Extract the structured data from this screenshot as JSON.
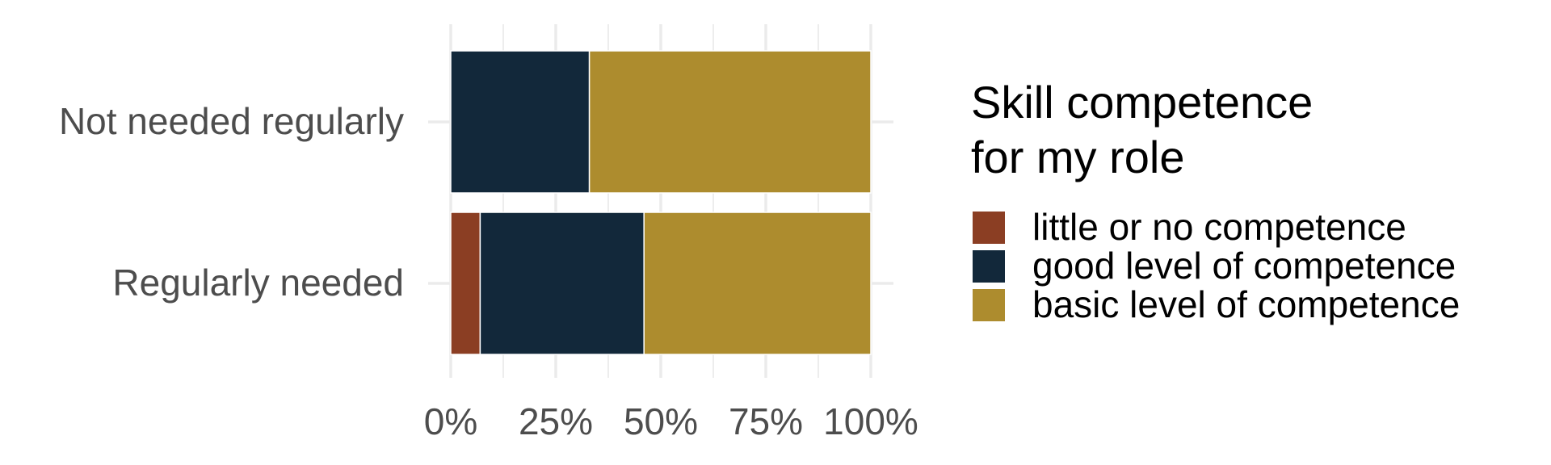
{
  "chart_data": {
    "type": "bar",
    "orientation": "horizontal",
    "stacked": true,
    "normalized": true,
    "title": "",
    "xlabel": "",
    "ylabel": "",
    "xlim": [
      0,
      100
    ],
    "x_ticks": [
      "0%",
      "25%",
      "50%",
      "75%",
      "100%"
    ],
    "x_tick_values": [
      0,
      25,
      50,
      75,
      100
    ],
    "grid": true,
    "legend_position": "right",
    "legend_title_lines": [
      "Skill competence",
      "for my role"
    ],
    "categories": [
      "Not needed regularly",
      "Regularly needed"
    ],
    "series": [
      {
        "name": "little or no competence",
        "color": "#8b3e23",
        "values": [
          0,
          7
        ]
      },
      {
        "name": "good level of competence",
        "color": "#12283a",
        "values": [
          33,
          39
        ]
      },
      {
        "name": "basic level of competence",
        "color": "#ad8c2e",
        "values": [
          67,
          54
        ]
      }
    ]
  }
}
